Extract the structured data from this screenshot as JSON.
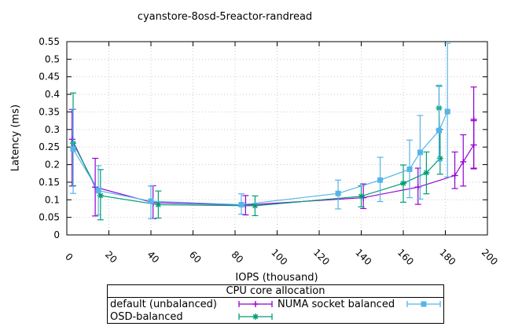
{
  "title": "cyanstore-8osd-5reactor-randread",
  "chart_data": {
    "type": "line",
    "title": "cyanstore-8osd-5reactor-randread",
    "xlabel": "IOPS (thousand)",
    "ylabel": "Latency (ms)",
    "xlim": [
      0,
      200
    ],
    "ylim": [
      0,
      0.55
    ],
    "xticks": [
      0,
      20,
      40,
      60,
      80,
      100,
      120,
      140,
      160,
      180,
      200
    ],
    "xtick_labels": [
      "0",
      "20",
      "40",
      "60",
      "80",
      "100",
      "120",
      "140",
      "160",
      "180",
      "200"
    ],
    "yticks": [
      0,
      0.05,
      0.1,
      0.15,
      0.2,
      0.25,
      0.3,
      0.35,
      0.4,
      0.45,
      0.5,
      0.55
    ],
    "ytick_labels": [
      "0",
      "0.05",
      "0.1",
      "0.15",
      "0.2",
      "0.25",
      "0.3",
      "0.35",
      "0.4",
      "0.45",
      "0.5",
      "0.55"
    ],
    "grid": true,
    "grid_color": "#cccccc",
    "axis_color": "#000000",
    "legend_position": "below",
    "point_format": "[iops_thousand, latency_ms, err_low, err_high]",
    "series": [
      {
        "name": "default (unbalanced)",
        "color": "#9400d3",
        "marker": "plus",
        "points": [
          [
            2.5,
            0.272,
            0.139,
            0.357
          ],
          [
            13.5,
            0.136,
            0.054,
            0.218
          ],
          [
            41,
            0.092,
            0.046,
            0.14
          ],
          [
            85,
            0.085,
            0.057,
            0.112
          ],
          [
            141,
            0.106,
            0.075,
            0.145
          ],
          [
            167,
            0.136,
            0.087,
            0.19
          ],
          [
            184.5,
            0.169,
            0.132,
            0.236
          ],
          [
            188.5,
            0.208,
            0.139,
            0.285
          ],
          [
            193.5,
            0.256,
            0.19,
            0.325
          ],
          [
            193.5,
            0.329,
            0.188,
            0.421
          ]
        ]
      },
      {
        "name": "OSD-balanced",
        "color": "#009e73",
        "marker": "asterisk",
        "points": [
          [
            3,
            0.261,
            0.14,
            0.404
          ],
          [
            16,
            0.112,
            0.043,
            0.186
          ],
          [
            43.5,
            0.086,
            0.048,
            0.125
          ],
          [
            89.5,
            0.083,
            0.055,
            0.111
          ],
          [
            140,
            0.11,
            0.08,
            0.14
          ],
          [
            160,
            0.147,
            0.093,
            0.199
          ],
          [
            171,
            0.177,
            0.117,
            0.236
          ],
          [
            177.5,
            0.218,
            0.173,
            0.3
          ],
          [
            177,
            0.361,
            0.3,
            0.423
          ]
        ]
      },
      {
        "name": "NUMA socket balanced",
        "color": "#56b4e9",
        "marker": "square",
        "points": [
          [
            3,
            0.244,
            0.118,
            0.358
          ],
          [
            15,
            0.126,
            0.057,
            0.197
          ],
          [
            40,
            0.096,
            0.046,
            0.139
          ],
          [
            83,
            0.086,
            0.059,
            0.117
          ],
          [
            129,
            0.118,
            0.074,
            0.156
          ],
          [
            149,
            0.156,
            0.095,
            0.221
          ],
          [
            163,
            0.187,
            0.106,
            0.27
          ],
          [
            168,
            0.235,
            0.102,
            0.34
          ],
          [
            177,
            0.297,
            0.21,
            0.426
          ],
          [
            181,
            0.351,
            0.165,
            0.545
          ]
        ]
      }
    ]
  },
  "legend": {
    "title": "CPU core allocation",
    "entries": [
      {
        "label": "default (unbalanced)",
        "series": 0
      },
      {
        "label": "NUMA socket balanced",
        "series": 2
      },
      {
        "label": "OSD-balanced",
        "series": 1
      }
    ]
  }
}
